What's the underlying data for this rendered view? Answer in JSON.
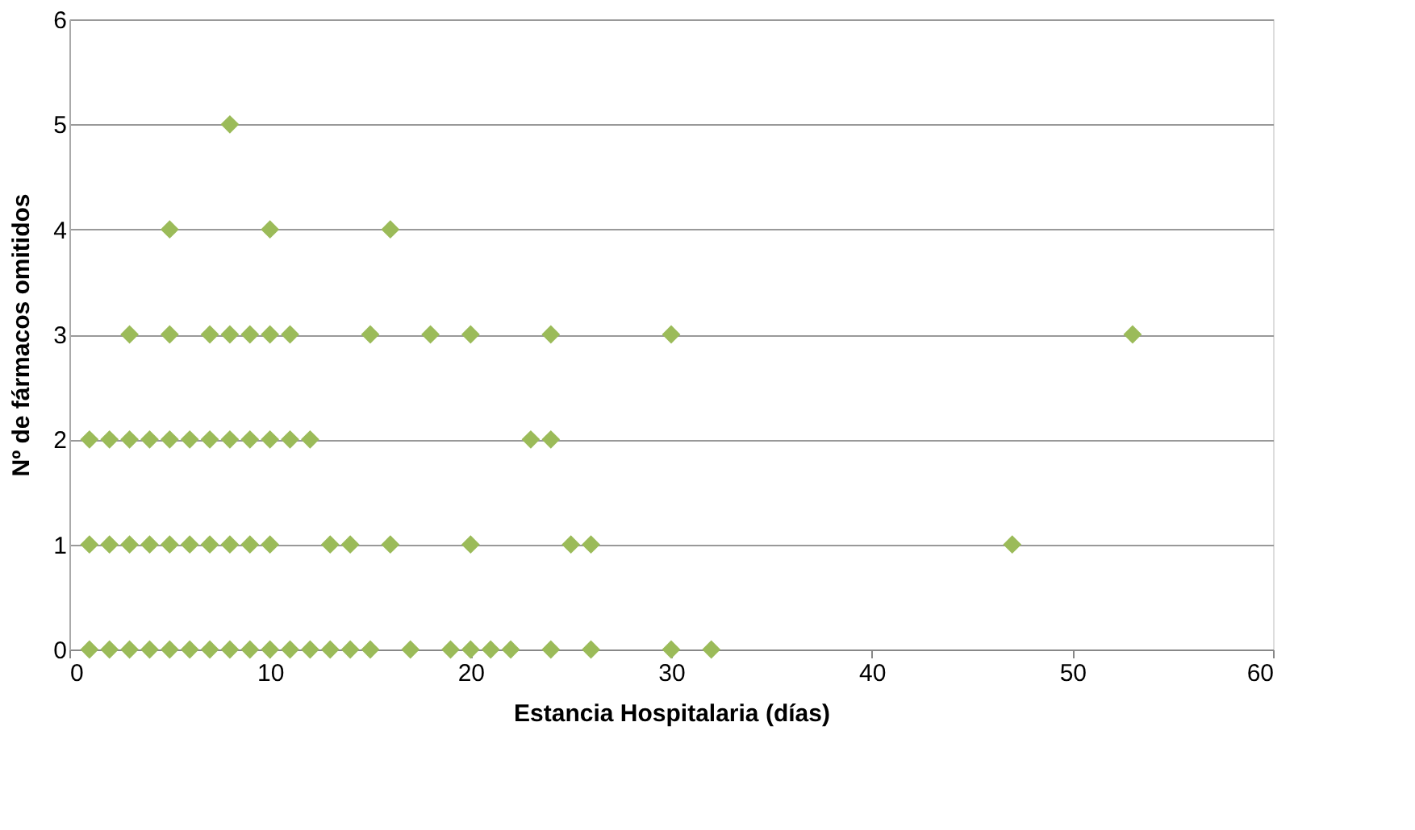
{
  "chart_data": {
    "type": "scatter",
    "xlabel": "Estancia Hospitalaria (días)",
    "ylabel": "Nº de fármacos omitidos",
    "x": [
      8,
      5,
      10,
      16,
      3,
      5,
      7,
      8,
      9,
      10,
      11,
      15,
      18,
      20,
      24,
      30,
      53,
      1,
      2,
      3,
      4,
      5,
      6,
      7,
      8,
      9,
      10,
      11,
      12,
      23,
      24,
      1,
      2,
      3,
      4,
      5,
      6,
      7,
      8,
      9,
      10,
      13,
      14,
      16,
      20,
      25,
      26,
      47,
      1,
      2,
      3,
      4,
      5,
      6,
      7,
      8,
      9,
      10,
      11,
      12,
      13,
      14,
      15,
      17,
      19,
      20,
      21,
      22,
      24,
      26,
      30,
      32
    ],
    "values": [
      5,
      4,
      4,
      4,
      3,
      3,
      3,
      3,
      3,
      3,
      3,
      3,
      3,
      3,
      3,
      3,
      3,
      2,
      2,
      2,
      2,
      2,
      2,
      2,
      2,
      2,
      2,
      2,
      2,
      2,
      2,
      1,
      1,
      1,
      1,
      1,
      1,
      1,
      1,
      1,
      1,
      1,
      1,
      1,
      1,
      1,
      1,
      1,
      0,
      0,
      0,
      0,
      0,
      0,
      0,
      0,
      0,
      0,
      0,
      0,
      0,
      0,
      0,
      0,
      0,
      0,
      0,
      0,
      0,
      0,
      0,
      0
    ],
    "color": "#9bbb59",
    "marker": "diamond",
    "xlim": [
      0,
      60
    ],
    "xticks": [
      0,
      10,
      20,
      30,
      40,
      50,
      60
    ],
    "ylim": [
      0,
      6
    ],
    "yticks": [
      0,
      1,
      2,
      3,
      4,
      5,
      6
    ],
    "grid": "y"
  }
}
